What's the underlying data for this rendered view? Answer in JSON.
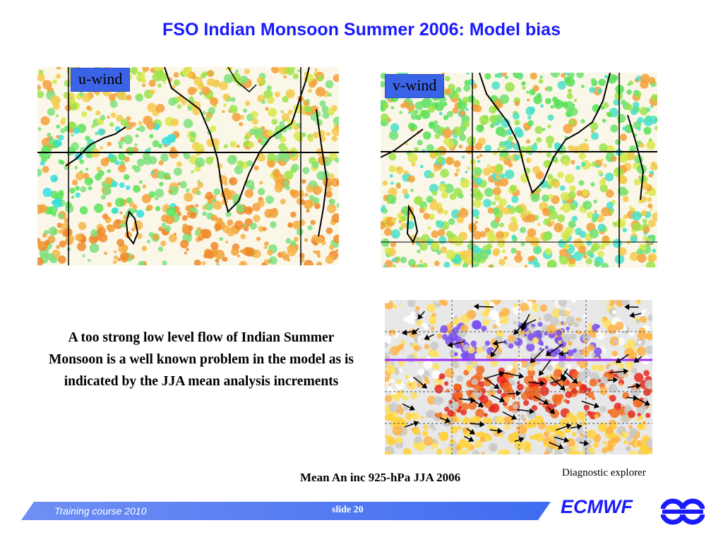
{
  "title": "FSO Indian Monsoon Summer 2006: Model bias",
  "maps": {
    "u_wind_label": "u-wind",
    "v_wind_label": "v-wind"
  },
  "body_text": "A too strong low level flow of Indian Summer Monsoon is a well known problem in the model as is indicated by the JJA mean analysis increments",
  "increment_caption": "Mean An inc 925-hPa JJA 2006",
  "diagnostic_label": "Diagnostic explorer",
  "footer": {
    "course": "Training course  2010",
    "slide": "slide 20",
    "logo": "ECMWF"
  },
  "colors": {
    "title": "#1a1aff",
    "label_box": "#3b63e6",
    "footer_bar": "#4a78f0"
  }
}
